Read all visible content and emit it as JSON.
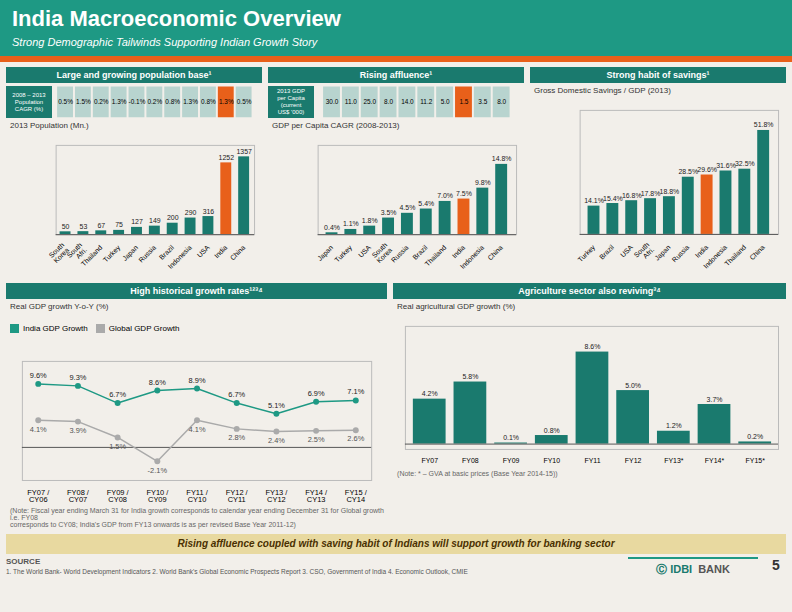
{
  "title": "India Macroeconomic Overview",
  "subtitle": "Strong Demographic Tailwinds Supporting Indian Growth Story",
  "chart_data": [
    {
      "type": "bar",
      "title": "Large and growing population base¹",
      "subtitle": "2013 Population (Mn.)",
      "categories": [
        "South\nKorea",
        "South\nAfri.",
        "Thailand",
        "Turkey",
        "Japan",
        "Russia",
        "Brazil",
        "Indonesia",
        "USA",
        "India",
        "China"
      ],
      "values": [
        50,
        53,
        67,
        75,
        127,
        149,
        200,
        290,
        316,
        1252,
        1357
      ],
      "colors": [
        "#1a7a6e",
        "#1a7a6e",
        "#1a7a6e",
        "#1a7a6e",
        "#1a7a6e",
        "#1a7a6e",
        "#1a7a6e",
        "#1a7a6e",
        "#1a7a6e",
        "#e8601a",
        "#1a7a6e"
      ],
      "ylim": [
        0,
        1557
      ],
      "tick_labels": "x",
      "data_labels": true,
      "grid": false,
      "table": {
        "title": "2008 – 2013\nPopulation\nCAGR (%)",
        "values": [
          0.5,
          1.5,
          0.2,
          1.3,
          -0.1,
          0.2,
          0.8,
          1.3,
          0.8,
          1.3,
          0.5
        ],
        "value_labels": [
          "0.5%",
          "1.5%",
          "0.2%",
          "1.3%",
          "-0.1%",
          "0.2%",
          "0.8%",
          "1.3%",
          "0.8%",
          "1.3%",
          "0.5%"
        ],
        "colors": [
          "#b8d4cf",
          "#b8d4cf",
          "#b8d4cf",
          "#b8d4cf",
          "#b8d4cf",
          "#b8d4cf",
          "#b8d4cf",
          "#b8d4cf",
          "#b8d4cf",
          "#e8601a",
          "#b8d4cf"
        ]
      }
    },
    {
      "type": "bar",
      "title": "Rising affluence¹",
      "subtitle": "GDP per Capita CAGR (2008-2013)",
      "categories": [
        "Japan",
        "Turkey",
        "USA",
        "South\nKorea",
        "Russia",
        "Brazil",
        "Thailand",
        "India",
        "Indonesia",
        "China"
      ],
      "values": [
        0.4,
        1.1,
        1.8,
        3.5,
        4.5,
        5.4,
        7.0,
        7.5,
        9.8,
        14.8
      ],
      "value_labels": [
        "0.4%",
        "1.1%",
        "1.8%",
        "3.5%",
        "4.5%",
        "5.4%",
        "7.0%",
        "7.5%",
        "9.8%",
        "14.8%"
      ],
      "colors": [
        "#1a7a6e",
        "#1a7a6e",
        "#1a7a6e",
        "#1a7a6e",
        "#1a7a6e",
        "#1a7a6e",
        "#1a7a6e",
        "#e8601a",
        "#1a7a6e",
        "#1a7a6e"
      ],
      "ylim": [
        0,
        18.8
      ],
      "tick_labels": "x",
      "data_labels": true,
      "grid": false,
      "table": {
        "title": "2013 GDP\nper Capita\n(current\nUS$ '000)",
        "values": [
          30.0,
          11.0,
          25.0,
          8.0,
          14.0,
          11.2,
          5.0,
          1.5,
          3.5,
          8.0
        ],
        "value_labels": [
          "30.0",
          "11.0",
          "25.0",
          "8.0",
          "14.0",
          "11.2",
          "5.0",
          "1.5",
          "3.5",
          "8.0"
        ],
        "colors": [
          "#b8d4cf",
          "#b8d4cf",
          "#b8d4cf",
          "#b8d4cf",
          "#b8d4cf",
          "#b8d4cf",
          "#b8d4cf",
          "#e8601a",
          "#b8d4cf",
          "#b8d4cf"
        ]
      }
    },
    {
      "type": "bar",
      "title": "Strong habit of savings¹",
      "subtitle": "Gross Domestic Savings / GDP (2013)",
      "categories": [
        "Turkey",
        "Brazil",
        "USA",
        "South\nAfri.",
        "Japan",
        "Russia",
        "India",
        "Indonesia",
        "Thailand",
        "China"
      ],
      "values": [
        14.1,
        15.4,
        16.8,
        17.8,
        18.8,
        28.5,
        29.6,
        31.6,
        32.5,
        51.8
      ],
      "value_labels": [
        "14.1%",
        "15.4%",
        "16.8%",
        "17.8%",
        "18.8%",
        "28.5%",
        "29.6%",
        "31.6%",
        "32.5%",
        "51.8%"
      ],
      "colors": [
        "#1a7a6e",
        "#1a7a6e",
        "#1a7a6e",
        "#1a7a6e",
        "#1a7a6e",
        "#1a7a6e",
        "#e8601a",
        "#1a7a6e",
        "#1a7a6e",
        "#1a7a6e"
      ],
      "ylim": [
        0,
        61.8
      ],
      "tick_labels": "x",
      "data_labels": true,
      "grid": false
    },
    {
      "type": "line",
      "title": "High historical growth rates¹²³⁴",
      "subtitle": "Real GDP growth Y-o-Y (%)",
      "categories": [
        "FY07 /\nCY06",
        "FY08 /\nCY07",
        "FY09 /\nCY08",
        "FY10 /\nCY09",
        "FY11 /\nCY10",
        "FY12 /\nCY11",
        "FY13 /\nCY12",
        "FY14 /\nCY13",
        "FY15 /\nCY14"
      ],
      "series": [
        {
          "name": "India GDP Growth",
          "color": "#1e9984",
          "marker": "circle",
          "line_style": "solid",
          "values": [
            9.6,
            9.3,
            6.7,
            8.6,
            8.9,
            6.7,
            5.1,
            6.9,
            7.1
          ],
          "value_labels": [
            "9.6%",
            "9.3%",
            "6.7%",
            "8.6%",
            "8.9%",
            "6.7%",
            "5.1%",
            "6.9%",
            "7.1%"
          ]
        },
        {
          "name": "Global GDP Growth",
          "color": "#aaaaaa",
          "marker": "circle",
          "line_style": "solid",
          "values": [
            4.1,
            3.9,
            1.5,
            -2.1,
            4.1,
            2.8,
            2.4,
            2.5,
            2.6
          ],
          "value_labels": [
            "4.1%",
            "3.9%",
            "1.5%",
            "-2.1%",
            "4.1%",
            "2.8%",
            "2.4%",
            "2.5%",
            "2.6%"
          ]
        }
      ],
      "ylim": [
        -5,
        13
      ],
      "tick_labels": "x",
      "data_labels": true,
      "grid": false,
      "legend": "top",
      "note": "(Note: Fiscal year ending March 31 for India growth corresponds to calendar year ending December 31 for Global growth i.e. FY08\ncorresponds to CY08; India's GDP from FY13 onwards is as per revised Base Year 2011-12)"
    },
    {
      "type": "bar",
      "title": "Agriculture sector also reviving³⁴",
      "subtitle": "Real agricultural GDP growth (%)",
      "categories": [
        "FY07",
        "FY08",
        "FY09",
        "FY10",
        "FY11",
        "FY12",
        "FY13*",
        "FY14*",
        "FY15*"
      ],
      "values": [
        4.2,
        5.8,
        0.1,
        0.8,
        8.6,
        5.0,
        1.2,
        3.7,
        0.2
      ],
      "value_labels": [
        "4.2%",
        "5.8%",
        "0.1%",
        "0.8%",
        "8.6%",
        "5.0%",
        "1.2%",
        "3.7%",
        "0.2%"
      ],
      "color": "#1a7a6e",
      "ylim": [
        -0.5,
        11
      ],
      "tick_labels": "x",
      "data_labels": true,
      "grid": false,
      "note": "(Note: * – GVA at basic prices (Base Year 2014-15))"
    }
  ],
  "footer": "Rising affluence coupled with saving habit of Indians will support growth for banking sector",
  "source": "SOURCE",
  "footnote": "1. The World Bank- World Development Indicators  2. World Bank's Global Economic Prospects Report  3. CSO, Government of India  4. Economic Outlook, CMIE",
  "logo": [
    "Ⓒ IDBI",
    "BANK"
  ],
  "page": "5"
}
